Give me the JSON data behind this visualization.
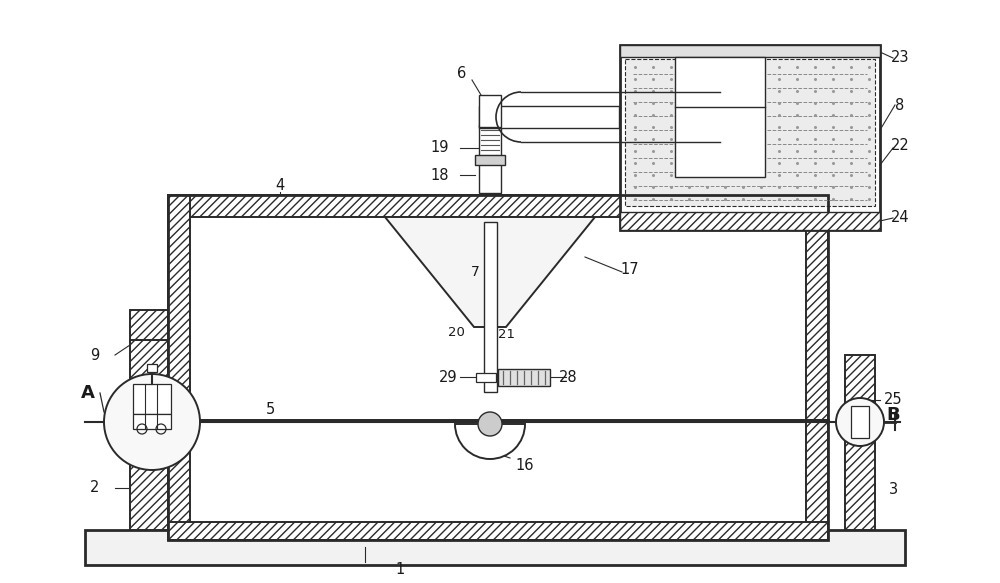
{
  "bg_color": "#ffffff",
  "line_color": "#2a2a2a",
  "label_color": "#1a1a1a",
  "label_fontsize": 10.5,
  "figsize": [
    10.0,
    5.83
  ],
  "dpi": 100
}
